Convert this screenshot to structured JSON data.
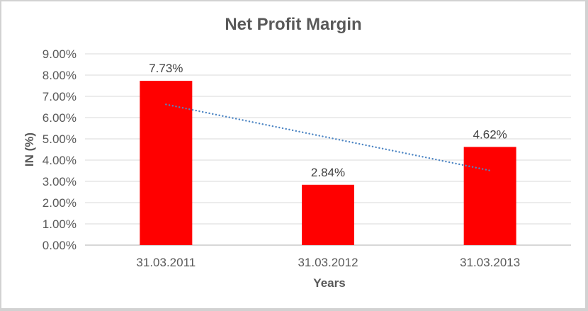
{
  "chart_data": {
    "type": "bar",
    "title": "Net Profit Margin",
    "xlabel": "Years",
    "ylabel": "IN (%)",
    "categories": [
      "31.03.2011",
      "31.03.2012",
      "31.03.2013"
    ],
    "values": [
      7.73,
      2.84,
      4.62
    ],
    "data_labels": [
      "7.73%",
      "2.84%",
      "4.62%"
    ],
    "yticks": [
      "0.00%",
      "1.00%",
      "2.00%",
      "3.00%",
      "4.00%",
      "5.00%",
      "6.00%",
      "7.00%",
      "8.00%",
      "9.00%"
    ],
    "ylim": [
      0,
      9
    ],
    "grid": true,
    "legend": "none",
    "trendline": {
      "type": "linear",
      "style": "dotted",
      "color": "#4e86c4",
      "start_value": 6.62,
      "end_value": 3.51
    },
    "colors": {
      "bar": "#ff0000",
      "grid": "#d9d9d9",
      "axis": "#bfbfbf",
      "tick_text": "#595959",
      "data_label_text": "#404040",
      "title_text": "#595959"
    }
  }
}
